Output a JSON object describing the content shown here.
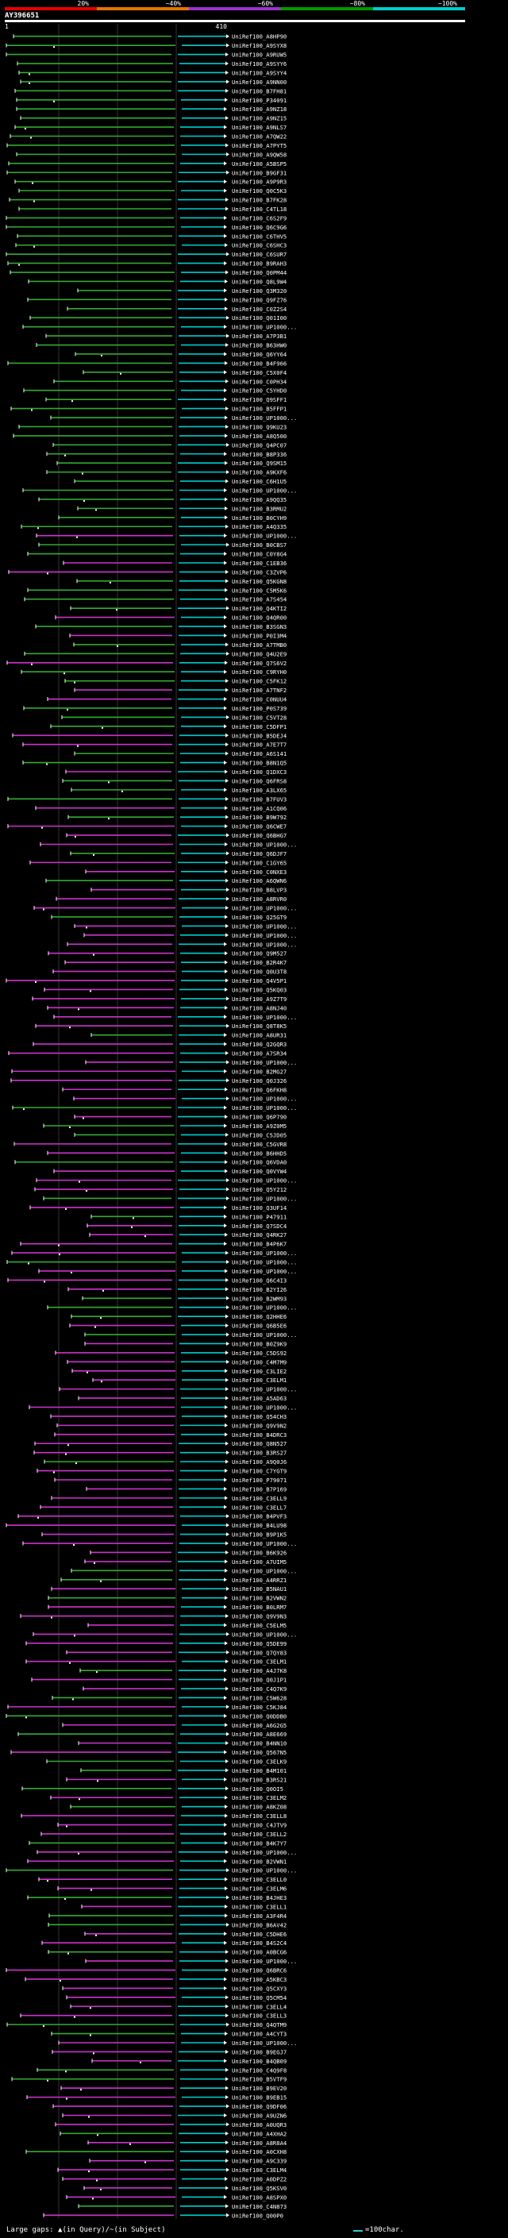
{
  "chart_data": {
    "type": "alignment-map",
    "query_title": "AY396651",
    "query_start": "1",
    "query_end": "410",
    "top_scale_labels": [
      "20%",
      "~40%",
      "~60%",
      "~80%",
      "~100%"
    ],
    "identity_colors": [
      "#e60000",
      "#e67300",
      "#9933cc",
      "#009900",
      "#00cccc"
    ],
    "hit_colors": {
      "high": "#00cccc",
      "mid": "#33aa33",
      "low": "#cc33cc"
    },
    "legend_text": "Large gaps: ▲(in Query)/~(in Subject)",
    "scale_text": "=100char.",
    "hits": [
      "UniRef100_A8HP90",
      "UniRef100_A9SYX8",
      "UniRef100_A9RUW5",
      "UniRef100_A9SYY6",
      "UniRef100_A9SYY4",
      "UniRef100_A9NN00",
      "UniRef100_B7FH81",
      "UniRef100_P34091",
      "UniRef100_A9NZ18",
      "UniRef100_A9NZ15",
      "UniRef100_A9NLS7",
      "UniRef100_A7QW22",
      "UniRef100_A7PYT5",
      "UniRef100_A9QW58",
      "UniRef100_A5BSP5",
      "UniRef100_B9GF31",
      "UniRef100_A9P9R3",
      "UniRef100_Q0C5K3",
      "UniRef100_B7FK28",
      "UniRef100_C4TL18",
      "UniRef100_C6S2F9",
      "UniRef100_Q6C9G6",
      "UniRef100_C6THV5",
      "UniRef100_C6SHC3",
      "UniRef100_C6SUR7",
      "UniRef100_B9RAH3",
      "UniRef100_Q0PM44",
      "UniRef100_Q8L9W4",
      "UniRef100_Q3M320",
      "UniRef100_Q9FZ76",
      "UniRef100_C0Z2S4",
      "UniRef100_Q01I00",
      "UniRef100_UP1000...",
      "UniRef100_A7P3B1",
      "UniRef100_B63HW0",
      "UniRef100_Q6YY64",
      "UniRef100_B4F966",
      "UniRef100_C5X0F4",
      "UniRef100_C0PH34",
      "UniRef100_C5YHD0",
      "UniRef100_Q9SFF1",
      "UniRef100_B5FFP1",
      "UniRef100_UP1000...",
      "UniRef100_Q9KU23",
      "UniRef100_A8Q500",
      "UniRef100_Q4PC07",
      "UniRef100_B8P336",
      "UniRef100_Q9SM15",
      "UniRef100_A9KXF6",
      "UniRef100_C6H1U5",
      "UniRef100_UP1000...",
      "UniRef100_A9QQ35",
      "UniRef100_B3RMU2",
      "UniRef100_B0CYH9",
      "UniRef100_A4Q335",
      "UniRef100_UP1000...",
      "UniRef100_B0CBS7",
      "UniRef100_C0Y8G4",
      "UniRef100_C1EB36",
      "UniRef100_C3ZVP6",
      "UniRef100_Q5KGN8",
      "UniRef100_C5M5K6",
      "UniRef100_A7S454",
      "UniRef100_Q4KTI2",
      "UniRef100_Q4QR00",
      "UniRef100_B3SGN3",
      "UniRef100_P0I3M4",
      "UniRef100_A7TMB0",
      "UniRef100_Q4U2E9",
      "UniRef100_Q7S6V2",
      "UniRef100_C9RYH0",
      "UniRef100_C5FK12",
      "UniRef100_A7TNF2",
      "UniRef100_C0NUU4",
      "UniRef100_P0S739",
      "UniRef100_C5VT28",
      "UniRef100_C5DFP1",
      "UniRef100_B5DEJ4",
      "UniRef100_A7E7T7",
      "UniRef100_A6S141",
      "UniRef100_B8N1Q5",
      "UniRef100_Q1DXC3",
      "UniRef100_Q6FRS8",
      "UniRef100_A3LX65",
      "UniRef100_B7FUV3",
      "UniRef100_A1CQ06",
      "UniRef100_B9W792",
      "UniRef100_Q6CWE7",
      "UniRef100_Q6BHG7",
      "UniRef100_UP1000...",
      "UniRef100_Q6DJF7",
      "UniRef100_C1GY65",
      "UniRef100_C0NXE3",
      "UniRef100_A6QWN6",
      "UniRef100_B8LVP3",
      "UniRef100_A8RVR0",
      "UniRef100_UP1000...",
      "UniRef100_Q25GT9",
      "UniRef100_UP1000...",
      "UniRef100_UP1000...",
      "UniRef100_UP1000...",
      "UniRef100_Q9M527",
      "UniRef100_B2R4K7",
      "UniRef100_Q0U3T8",
      "UniRef100_Q4V5P1",
      "UniRef100_Q5KQ03",
      "UniRef100_A9Z7T9",
      "UniRef100_A8NJ40",
      "UniRef100_UP1000...",
      "UniRef100_Q8T8K5",
      "UniRef100_A8UR31",
      "UniRef100_Q2GQR3",
      "UniRef100_A7SR34",
      "UniRef100_UP1000...",
      "UniRef100_B2MG27",
      "UniRef100_Q0J326",
      "UniRef100_Q6FKH8",
      "UniRef100_UP1000...",
      "UniRef100_UP1000...",
      "UniRef100_Q6P790",
      "UniRef100_A9Z0M5",
      "UniRef100_C5JD05",
      "UniRef100_C5GVR8",
      "UniRef100_B6HHD5",
      "UniRef100_Q6VDA0",
      "UniRef100_Q0VYW4",
      "UniRef100_UP1000...",
      "UniRef100_Q5Y212",
      "UniRef100_UP1000...",
      "UniRef100_Q3UF14",
      "UniRef100_P47911",
      "UniRef100_Q7SDC4",
      "UniRef100_Q4RK27",
      "UniRef100_B4P6K7",
      "UniRef100_UP1000...",
      "UniRef100_UP1000...",
      "UniRef100_UP1000...",
      "UniRef100_Q6C4I3",
      "UniRef100_B2YI26",
      "UniRef100_B2WM93",
      "UniRef100_UP1000...",
      "UniRef100_Q2HHE6",
      "UniRef100_Q6B5E6",
      "UniRef100_UP1000...",
      "UniRef100_B0Z9K9",
      "UniRef100_C5DS92",
      "UniRef100_C4M7M9",
      "UniRef100_C3LIE2",
      "UniRef100_C3ELM1",
      "UniRef100_UP1000...",
      "UniRef100_A5AD63",
      "UniRef100_UP1000...",
      "UniRef100_Q54CH3",
      "UniRef100_Q9V9N2",
      "UniRef100_B4DRC3",
      "UniRef100_Q8N527",
      "UniRef100_B3RS27",
      "UniRef100_A9Q0J6",
      "UniRef100_C7YGT9",
      "UniRef100_P79071",
      "UniRef100_B7P169",
      "UniRef100_C3ELL9",
      "UniRef100_C3ELL7",
      "UniRef100_B4PVF3",
      "UniRef100_B4LU98",
      "UniRef100_B9P1K5",
      "UniRef100_UP1000...",
      "UniRef100_B6K926",
      "UniRef100_A7UIM5",
      "UniRef100_UP1000...",
      "UniRef100_A4RRZ1",
      "UniRef100_B5NAU1",
      "UniRef100_B2VWN2",
      "UniRef100_B0LRM7",
      "UniRef100_Q9V9N3",
      "UniRef100_C5ELM5",
      "UniRef100_UP1000...",
      "UniRef100_Q5DE99",
      "UniRef100_Q7QY83",
      "UniRef100_C3ELM1",
      "UniRef100_A4J7K8",
      "UniRef100_Q0J1P1",
      "UniRef100_C4Q7K9",
      "UniRef100_C5W628",
      "UniRef100_C5KJ84",
      "UniRef100_Q0DDB0",
      "UniRef100_A6G2G5",
      "UniRef100_A8E669",
      "UniRef100_B4NN10",
      "UniRef100_Q567N5",
      "UniRef100_C3ELK9",
      "UniRef100_B4M101",
      "UniRef100_B3RS21",
      "UniRef100_Q0OI5",
      "UniRef100_C3ELM2",
      "UniRef100_A8KZ08",
      "UniRef100_C3ELL8",
      "UniRef100_C4JTV9",
      "UniRef100_C3ELL2",
      "UniRef100_B4K7Y7",
      "UniRef100_UP1000...",
      "UniRef100_B2VWN1",
      "UniRef100_UP1000...",
      "UniRef100_C3ELL0",
      "UniRef100_C3ELM6",
      "UniRef100_B4JHE3",
      "UniRef100_C3ELL1",
      "UniRef100_A3F4R4",
      "UniRef100_B6AV42",
      "UniRef100_C5DHE6",
      "UniRef100_B4S2C4",
      "UniRef100_A0BCG6",
      "UniRef100_UP1000...",
      "UniRef100_Q6BRC6",
      "UniRef100_A5KBC3",
      "UniRef100_Q5CXY3",
      "UniRef100_Q5CM54",
      "UniRef100_C3ELL4",
      "UniRef100_C3ELL3",
      "UniRef100_Q4QTM9",
      "UniRef100_A4CYT3",
      "UniRef100_UP1000...",
      "UniRef100_B9EGJ7",
      "UniRef100_B4QB09",
      "UniRef100_C4Q9F8",
      "UniRef100_B5VTF9",
      "UniRef100_B9EV20",
      "UniRef100_B9EB15",
      "UniRef100_Q9DF06",
      "UniRef100_A9UZN6",
      "UniRef100_A0UQR3",
      "UniRef100_A4XHA2",
      "UniRef100_A8R8A4",
      "UniRef100_A0CXH8",
      "UniRef100_A9C339",
      "UniRef100_C3ELM4",
      "UniRef100_A0DPZ2",
      "UniRef100_Q5KSV0",
      "UniRef100_A8SPX0",
      "UniRef100_C4N873",
      "UniRef100_Q00P0"
    ]
  }
}
